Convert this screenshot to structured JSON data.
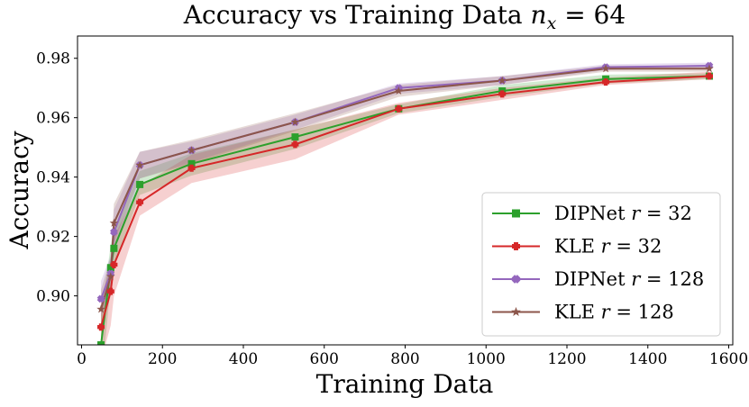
{
  "chart_data": {
    "type": "line",
    "title_prefix": "Accuracy vs Training Data ",
    "title_var": "n",
    "title_sub": "x",
    "title_suffix": " = 64",
    "xlabel": "Training Data",
    "ylabel": "Accuracy",
    "xlim": [
      -10,
      1610
    ],
    "ylim": [
      0.8835,
      0.9875
    ],
    "xticks": [
      0,
      200,
      400,
      600,
      800,
      1000,
      1200,
      1400,
      1600
    ],
    "yticks": [
      0.9,
      0.92,
      0.94,
      0.96,
      0.98
    ],
    "xtick_labels": [
      "0",
      "200",
      "400",
      "600",
      "800",
      "1000",
      "1200",
      "1400",
      "1600"
    ],
    "ytick_labels": [
      "0.90",
      "0.92",
      "0.94",
      "0.96",
      "0.98"
    ],
    "grid": false,
    "legend_position": "lower-right",
    "x": [
      48,
      72,
      80,
      144,
      272,
      528,
      784,
      1040,
      1296,
      1552
    ],
    "series": [
      {
        "name_prefix": "DIPNet ",
        "name_var": "r",
        "name_suffix": " = 32",
        "color": "#2ca02c",
        "marker": "square",
        "values": [
          0.8835,
          0.9095,
          0.916,
          0.9375,
          0.9445,
          0.9535,
          0.963,
          0.969,
          0.973,
          0.974
        ],
        "lower": [
          0.87,
          0.9035,
          0.91,
          0.934,
          0.9405,
          0.9495,
          0.9615,
          0.967,
          0.9715,
          0.973
        ],
        "upper": [
          0.893,
          0.917,
          0.922,
          0.942,
          0.948,
          0.956,
          0.9645,
          0.971,
          0.9745,
          0.975
        ]
      },
      {
        "name_prefix": "KLE ",
        "name_var": "r",
        "name_suffix": " = 32",
        "color": "#d62728",
        "marker": "plus",
        "values": [
          0.8895,
          0.9015,
          0.9105,
          0.9315,
          0.943,
          0.951,
          0.963,
          0.968,
          0.972,
          0.974
        ],
        "lower": [
          0.878,
          0.89,
          0.9,
          0.927,
          0.938,
          0.946,
          0.961,
          0.966,
          0.971,
          0.973
        ],
        "upper": [
          0.899,
          0.911,
          0.92,
          0.937,
          0.9475,
          0.956,
          0.965,
          0.97,
          0.9735,
          0.9755
        ]
      },
      {
        "name_prefix": "DIPNet ",
        "name_var": "r",
        "name_suffix": " = 128",
        "color": "#9467bd",
        "marker": "x",
        "values": [
          0.899,
          0.9075,
          0.9215,
          0.944,
          0.949,
          0.9585,
          0.97,
          0.9725,
          0.977,
          0.9775
        ],
        "lower": [
          0.893,
          0.901,
          0.914,
          0.9395,
          0.945,
          0.956,
          0.968,
          0.971,
          0.976,
          0.9765
        ],
        "upper": [
          0.905,
          0.9135,
          0.929,
          0.9485,
          0.952,
          0.961,
          0.9715,
          0.974,
          0.978,
          0.9785
        ]
      },
      {
        "name_prefix": "KLE ",
        "name_var": "r",
        "name_suffix": " = 128",
        "color": "#8c564b",
        "marker": "star",
        "values": [
          0.8955,
          0.9065,
          0.9245,
          0.944,
          0.949,
          0.9585,
          0.969,
          0.9725,
          0.9765,
          0.9765
        ],
        "lower": [
          0.889,
          0.9,
          0.918,
          0.9395,
          0.9445,
          0.9555,
          0.967,
          0.971,
          0.9755,
          0.9755
        ],
        "upper": [
          0.902,
          0.913,
          0.931,
          0.9485,
          0.9525,
          0.9615,
          0.971,
          0.974,
          0.9775,
          0.9775
        ]
      }
    ]
  }
}
